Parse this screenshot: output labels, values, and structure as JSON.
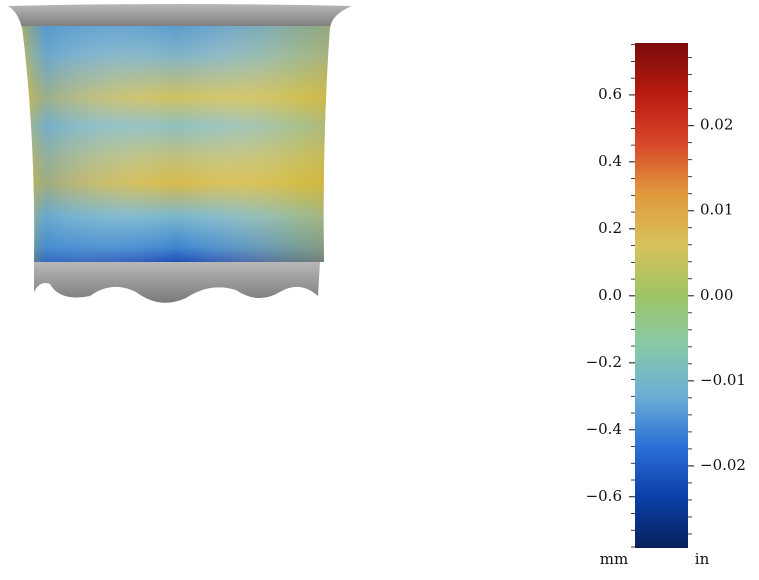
{
  "chart_data": {
    "type": "colorbar",
    "ylim": [
      -0.753,
      0.755
    ],
    "yticks": [
      0.6,
      0.4,
      0.2,
      {
        "value": 0,
        "label": "0.0"
      },
      {
        "value": -0.2,
        "label": "−0.2"
      },
      {
        "value": -0.4,
        "label": "−0.4"
      },
      {
        "value": -0.6,
        "label": "−0.6"
      }
    ],
    "yminorticks": [
      -0.75,
      -0.7,
      -0.65,
      -0.55,
      -0.5,
      -0.45,
      -0.35,
      -0.3,
      -0.25,
      -0.15,
      -0.1,
      -0.05,
      0.05,
      0.1,
      0.15,
      0.25,
      0.3,
      0.35,
      0.45,
      0.5,
      0.55,
      0.65,
      0.7,
      0.75
    ],
    "ylabel": "mm",
    "y2lim": [
      -0.02965,
      0.02972
    ],
    "y2ticks": [
      0.02,
      0.01,
      {
        "value": 0,
        "label": "0.00"
      },
      {
        "value": -0.01,
        "label": "−0.01"
      },
      {
        "value": -0.02,
        "label": "−0.02"
      }
    ],
    "y2minorticks": [
      -0.028,
      -0.026,
      -0.024,
      -0.022,
      -0.018,
      -0.016,
      -0.014,
      -0.012,
      -0.008,
      -0.006,
      -0.004,
      -0.002,
      0.002,
      0.004,
      0.006,
      0.008,
      0.012,
      0.014,
      0.016,
      0.018,
      0.022,
      0.024,
      0.026,
      0.028
    ],
    "y2label": "in",
    "colormap": [
      "#06205c",
      "#0b3fa8",
      "#2a6fd6",
      "#6aaed6",
      "#88c9a8",
      "#9ec466",
      "#d8c25a",
      "#e09a3c",
      "#d8482a",
      "#b81a10",
      "#7a0d0a"
    ]
  }
}
